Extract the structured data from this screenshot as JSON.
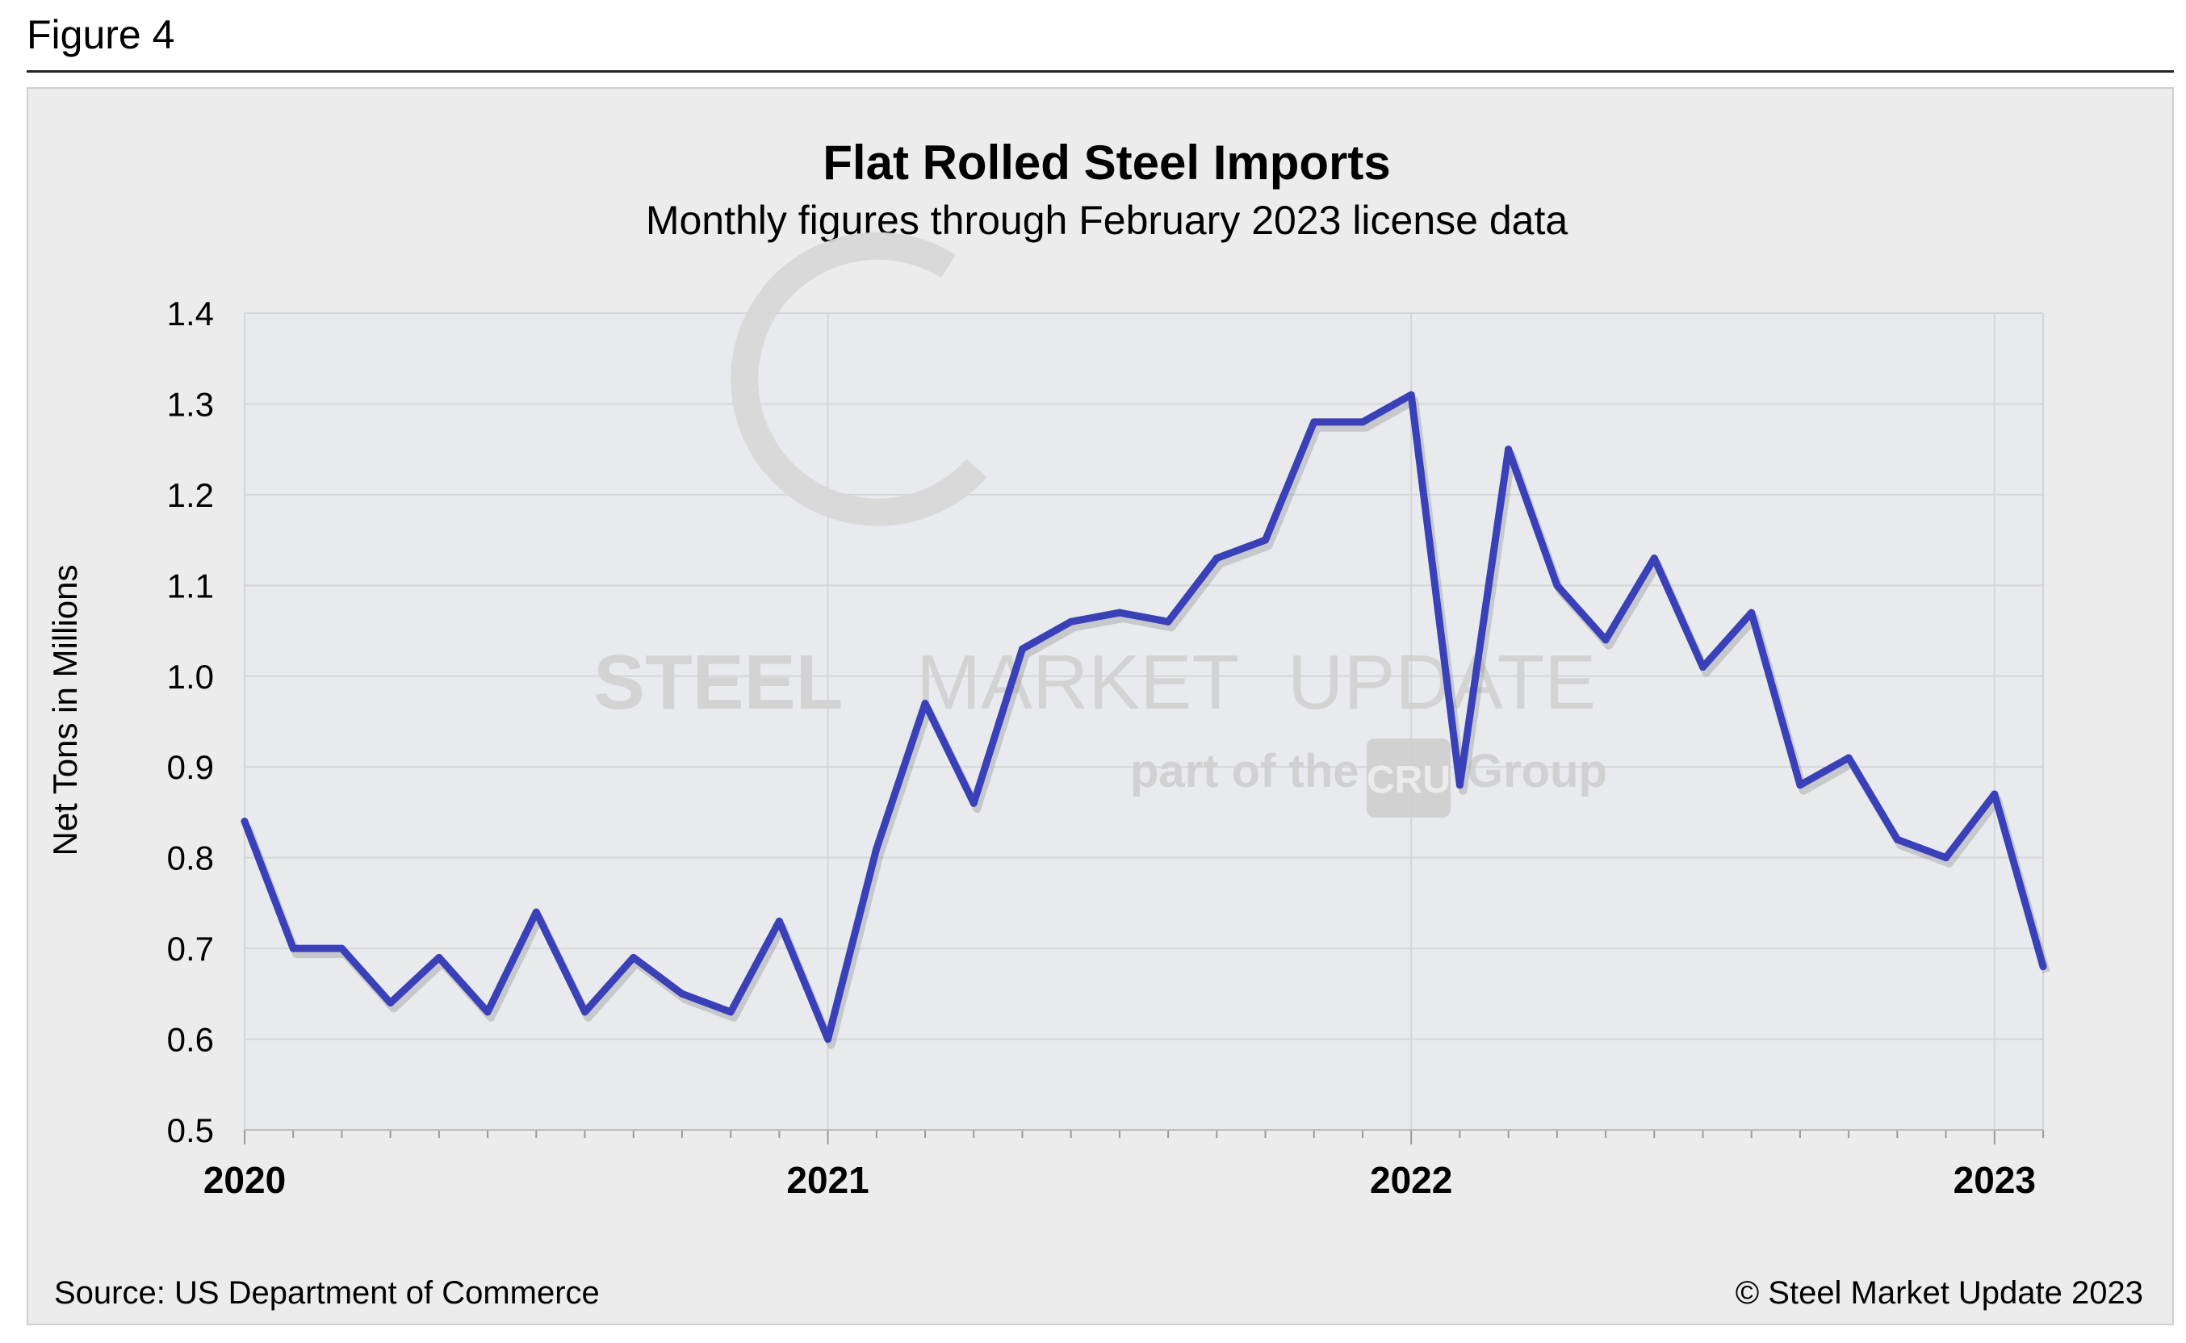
{
  "figure_label": "Figure 4",
  "source_note": "Source: US Department of Commerce",
  "copyright": "© Steel Market Update 2023",
  "watermark": {
    "brand_bold": "STEEL",
    "brand_mid": "MARKET",
    "brand_light": "UPDATE",
    "sub_prefix": "part of the",
    "sub_logo": "CRU",
    "sub_suffix": "Group"
  },
  "colors": {
    "line": "#3a40b8",
    "plot_bg": "#e9eaee",
    "grid": "#d4d5d9"
  },
  "chart_data": {
    "type": "line",
    "title": "Flat Rolled Steel Imports",
    "subtitle": "Monthly figures through February 2023 license data",
    "ylabel": "Net Tons in Millions",
    "xlabel": "",
    "ylim": [
      0.5,
      1.4
    ],
    "yticks": [
      "0.5",
      "0.6",
      "0.7",
      "0.8",
      "0.9",
      "1.0",
      "1.1",
      "1.2",
      "1.3",
      "1.4"
    ],
    "xtick_labels": [
      "2020",
      "2021",
      "2022",
      "2023"
    ],
    "grid": true,
    "x": [
      "2020-01",
      "2020-02",
      "2020-03",
      "2020-04",
      "2020-05",
      "2020-06",
      "2020-07",
      "2020-08",
      "2020-09",
      "2020-10",
      "2020-11",
      "2020-12",
      "2021-01",
      "2021-02",
      "2021-03",
      "2021-04",
      "2021-05",
      "2021-06",
      "2021-07",
      "2021-08",
      "2021-09",
      "2021-10",
      "2021-11",
      "2021-12",
      "2022-01",
      "2022-02",
      "2022-03",
      "2022-04",
      "2022-05",
      "2022-06",
      "2022-07",
      "2022-08",
      "2022-09",
      "2022-10",
      "2022-11",
      "2022-12",
      "2023-01",
      "2023-02"
    ],
    "series": [
      {
        "values": [
          0.84,
          0.7,
          0.7,
          0.64,
          0.69,
          0.63,
          0.74,
          0.63,
          0.69,
          0.65,
          0.63,
          0.73,
          0.6,
          0.81,
          0.97,
          0.86,
          1.03,
          1.06,
          1.07,
          1.06,
          1.13,
          1.15,
          1.28,
          1.28,
          1.31,
          0.88,
          1.25,
          1.1,
          1.04,
          1.13,
          1.01,
          1.07,
          0.88,
          0.91,
          0.82,
          0.8,
          0.87,
          0.68
        ]
      }
    ]
  }
}
